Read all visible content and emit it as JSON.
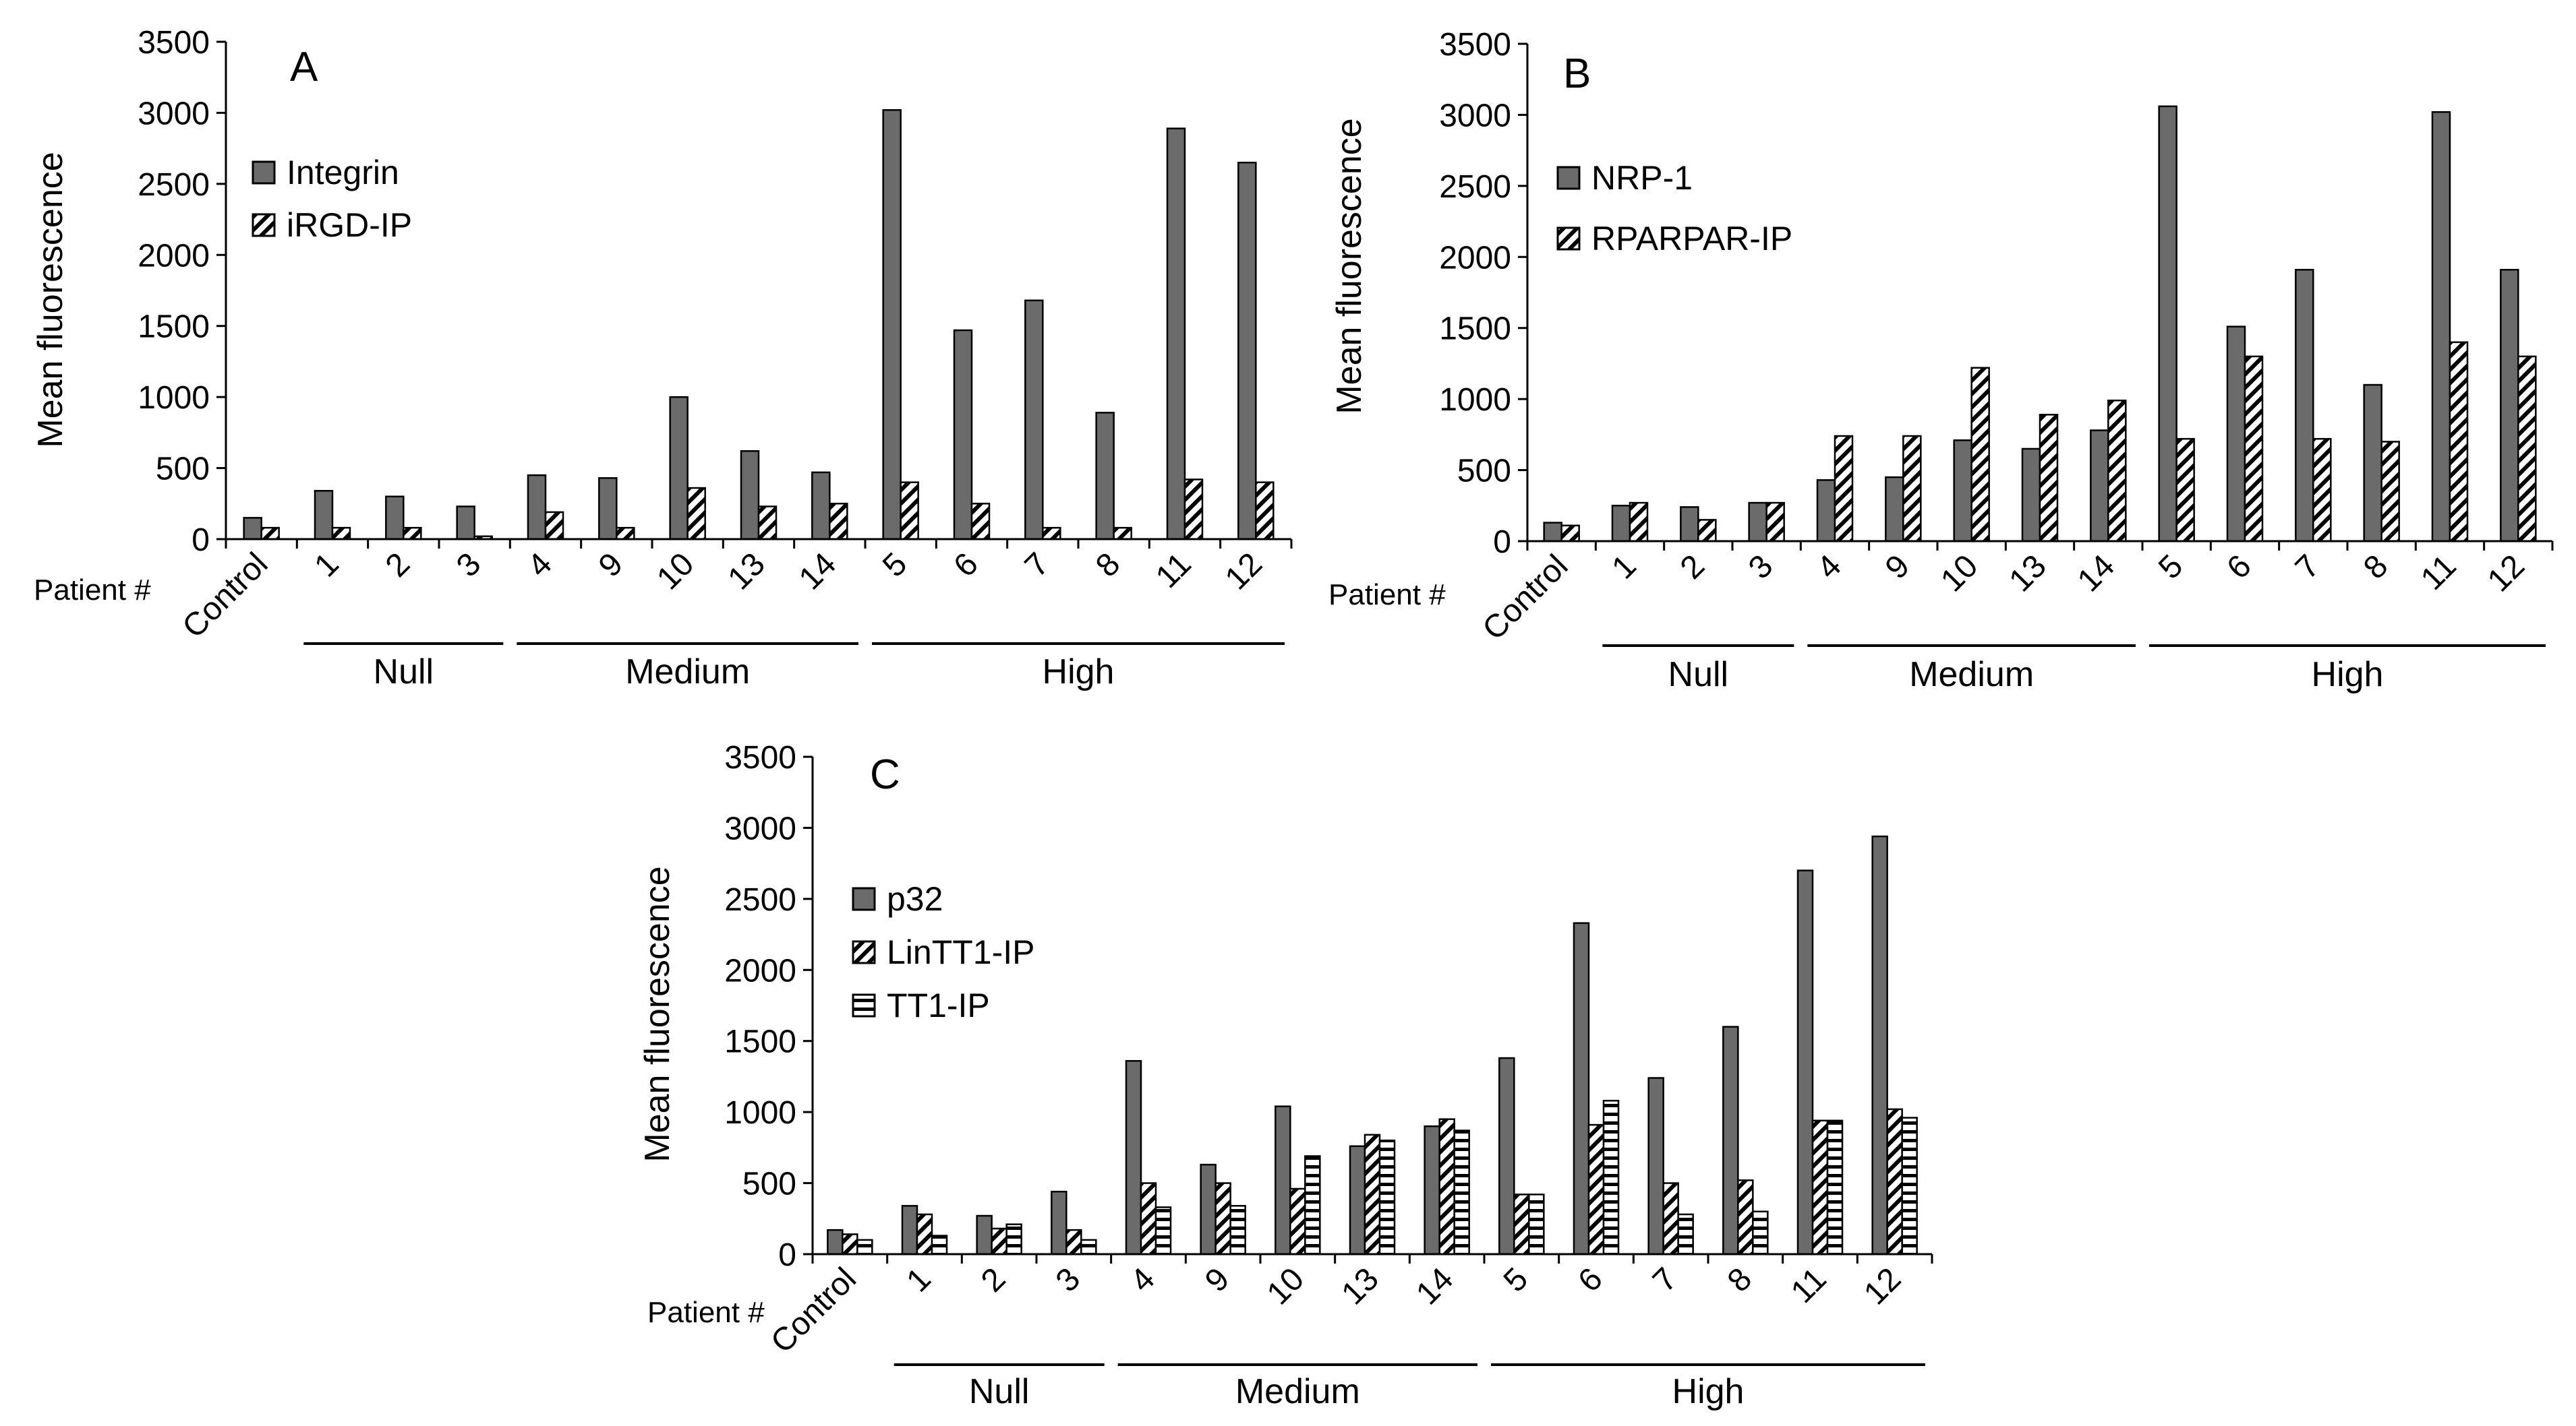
{
  "colors": {
    "solid": "#6b6b6b",
    "stroke": "#000000",
    "background": "#ffffff"
  },
  "chart_data": [
    {
      "type": "bar",
      "panel": "A",
      "ylabel": "Mean fluorescence",
      "ylim": [
        0,
        3500
      ],
      "yticks": [
        0,
        500,
        1000,
        1500,
        2000,
        2500,
        3000,
        3500
      ],
      "xlabel_prefix": "Patient #",
      "categories": [
        "Control",
        "1",
        "2",
        "3",
        "4",
        "9",
        "10",
        "13",
        "14",
        "5",
        "6",
        "7",
        "8",
        "11",
        "12"
      ],
      "series": [
        {
          "name": "Integrin",
          "pattern": "solid",
          "values": [
            150,
            340,
            300,
            230,
            450,
            430,
            1000,
            620,
            470,
            3020,
            1470,
            1680,
            890,
            2890,
            2650
          ]
        },
        {
          "name": "iRGD-IP",
          "pattern": "diagonal",
          "values": [
            80,
            80,
            80,
            20,
            190,
            80,
            360,
            230,
            250,
            400,
            250,
            80,
            80,
            420,
            400
          ]
        }
      ],
      "groups": [
        {
          "label": "Null",
          "from": 1,
          "to": 3
        },
        {
          "label": "Medium",
          "from": 4,
          "to": 8
        },
        {
          "label": "High",
          "from": 9,
          "to": 14
        }
      ]
    },
    {
      "type": "bar",
      "panel": "B",
      "ylabel": "Mean fluorescence",
      "ylim": [
        0,
        3500
      ],
      "yticks": [
        0,
        500,
        1000,
        1500,
        2000,
        2500,
        3000,
        3500
      ],
      "xlabel_prefix": "Patient #",
      "categories": [
        "Control",
        "1",
        "2",
        "3",
        "4",
        "9",
        "10",
        "13",
        "14",
        "5",
        "6",
        "7",
        "8",
        "11",
        "12"
      ],
      "series": [
        {
          "name": "NRP-1",
          "pattern": "solid",
          "values": [
            130,
            250,
            240,
            270,
            430,
            450,
            710,
            650,
            780,
            3060,
            1510,
            1910,
            1100,
            3020,
            1910
          ]
        },
        {
          "name": "RPARPAR-IP",
          "pattern": "diagonal",
          "values": [
            110,
            270,
            150,
            270,
            740,
            740,
            1220,
            890,
            990,
            720,
            1300,
            720,
            700,
            1400,
            1300
          ]
        }
      ],
      "groups": [
        {
          "label": "Null",
          "from": 1,
          "to": 3
        },
        {
          "label": "Medium",
          "from": 4,
          "to": 8
        },
        {
          "label": "High",
          "from": 9,
          "to": 14
        }
      ]
    },
    {
      "type": "bar",
      "panel": "C",
      "ylabel": "Mean fluorescence",
      "ylim": [
        0,
        3500
      ],
      "yticks": [
        0,
        500,
        1000,
        1500,
        2000,
        2500,
        3000,
        3500
      ],
      "xlabel_prefix": "Patient #",
      "categories": [
        "Control",
        "1",
        "2",
        "3",
        "4",
        "9",
        "10",
        "13",
        "14",
        "5",
        "6",
        "7",
        "8",
        "11",
        "12"
      ],
      "series": [
        {
          "name": "p32",
          "pattern": "solid",
          "values": [
            170,
            340,
            270,
            440,
            1360,
            630,
            1040,
            760,
            900,
            1380,
            2330,
            1240,
            1600,
            2700,
            2940
          ]
        },
        {
          "name": "LinTT1-IP",
          "pattern": "diagonal",
          "values": [
            140,
            280,
            180,
            170,
            500,
            500,
            460,
            840,
            950,
            420,
            910,
            500,
            520,
            940,
            1020
          ]
        },
        {
          "name": "TT1-IP",
          "pattern": "horizontal",
          "values": [
            100,
            130,
            210,
            100,
            330,
            340,
            690,
            800,
            870,
            420,
            1080,
            280,
            300,
            940,
            960
          ]
        }
      ],
      "groups": [
        {
          "label": "Null",
          "from": 1,
          "to": 3
        },
        {
          "label": "Medium",
          "from": 4,
          "to": 8
        },
        {
          "label": "High",
          "from": 9,
          "to": 14
        }
      ]
    }
  ]
}
